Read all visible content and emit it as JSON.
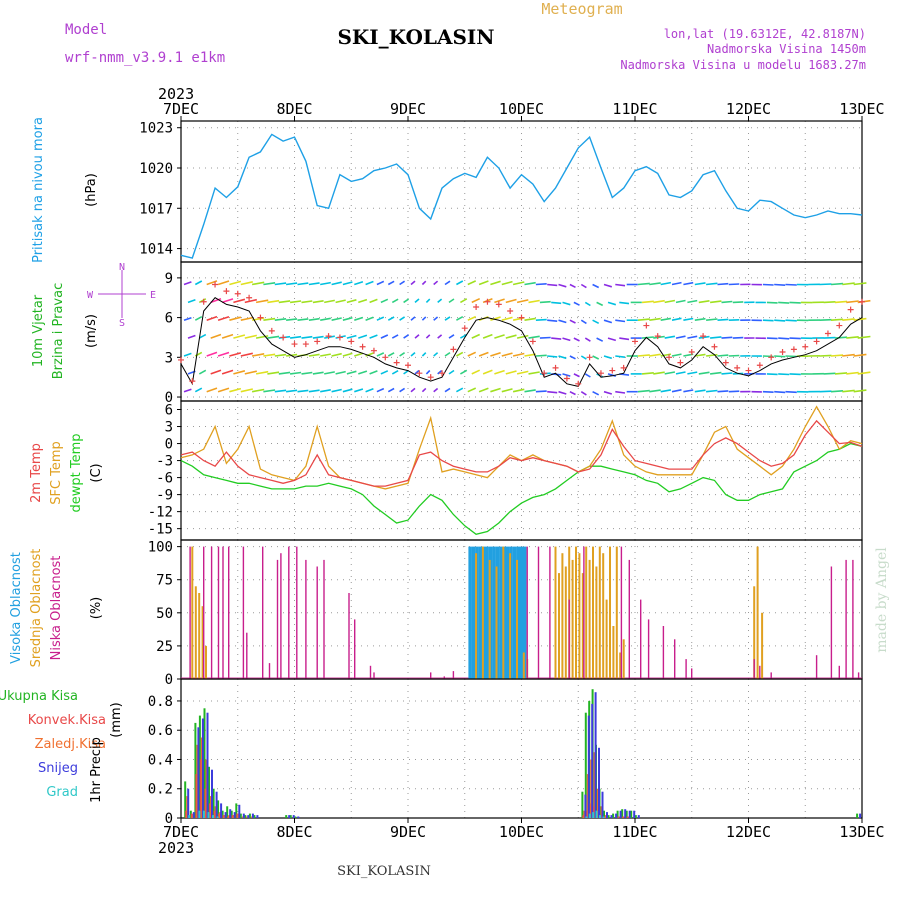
{
  "header": {
    "title": "SKI_KOLASIN",
    "model_label": "Model",
    "model_name": "wrf-nmm_v3.9.1 e1km",
    "meteogram_label": "Meteogram",
    "lonlat": "lon,lat (19.6312E, 42.8187N)",
    "elevation": "Nadmorska Visina 1450m",
    "elevation_model": "Nadmorska Visina u modelu 1683.27m",
    "year_top": "2023",
    "year_bottom": "2023",
    "footer_station": "SKI_KOLASIN",
    "credit": "made by Angel"
  },
  "colors": {
    "pressure": "#1ea0e6",
    "wind_label": "#22b422",
    "temp_2m": "#e84848",
    "temp_sfc": "#e0a020",
    "dewpoint": "#22cc22",
    "cloud_high": "#22a0e0",
    "cloud_mid": "#e0a020",
    "cloud_low": "#c81e8c",
    "precip_total": "#22b422",
    "precip_conv": "#e84848",
    "precip_frozen": "#f07030",
    "precip_snow": "#3c3cdc",
    "precip_hail": "#30c8c8",
    "wind_speed_line": "#000000",
    "gust_marker": "#e84848",
    "compass": "#b040d0"
  },
  "chart_data": [
    {
      "type": "line",
      "id": "pressure",
      "ylabel": "Pritisak na nivou mora",
      "unit": "(hPa)",
      "ylim": [
        1013,
        1023.5
      ],
      "yticks": [
        1014,
        1017,
        1020,
        1023
      ],
      "x": [
        0,
        0.1,
        0.2,
        0.3,
        0.4,
        0.5,
        0.6,
        0.7,
        0.8,
        0.9,
        1,
        1.1,
        1.2,
        1.3,
        1.4,
        1.5,
        1.6,
        1.7,
        1.8,
        1.9,
        2,
        2.1,
        2.2,
        2.3,
        2.4,
        2.5,
        2.6,
        2.7,
        2.8,
        2.9,
        3,
        3.1,
        3.2,
        3.3,
        3.4,
        3.5,
        3.6,
        3.7,
        3.8,
        3.9,
        4,
        4.1,
        4.2,
        4.3,
        4.4,
        4.5,
        4.6,
        4.7,
        4.8,
        4.9,
        5,
        5.1,
        5.2,
        5.3,
        5.4,
        5.5,
        5.6,
        5.7,
        5.8,
        5.9,
        6
      ],
      "values": [
        1013.5,
        1013.3,
        1015.8,
        1018.5,
        1017.8,
        1018.6,
        1020.8,
        1021.2,
        1022.5,
        1022.0,
        1022.3,
        1020.5,
        1017.2,
        1017.0,
        1019.5,
        1019.0,
        1019.2,
        1019.8,
        1020.0,
        1020.3,
        1019.5,
        1017.0,
        1016.2,
        1018.5,
        1019.2,
        1019.6,
        1019.3,
        1020.8,
        1020.0,
        1018.5,
        1019.5,
        1018.8,
        1017.5,
        1018.5,
        1020.0,
        1021.5,
        1022.3,
        1020.0,
        1017.8,
        1018.5,
        1019.8,
        1020.1,
        1019.6,
        1018.0,
        1017.8,
        1018.3,
        1019.5,
        1019.8,
        1018.3,
        1017.0,
        1016.8,
        1017.6,
        1017.5,
        1017.0,
        1016.5,
        1016.3,
        1016.5,
        1016.8,
        1016.6,
        1016.6,
        1016.5
      ]
    },
    {
      "type": "line",
      "id": "wind",
      "ylabel": "10m Vjetar",
      "ylabel2": "Brzina i Pravac",
      "unit": "(m/s)",
      "compass_labels": [
        "N",
        "E",
        "W",
        "S"
      ],
      "ylim": [
        -0.3,
        10.2
      ],
      "yticks": [
        0,
        3,
        6,
        9
      ],
      "x": [
        0,
        0.1,
        0.2,
        0.3,
        0.4,
        0.5,
        0.6,
        0.7,
        0.8,
        0.9,
        1,
        1.1,
        1.2,
        1.3,
        1.4,
        1.5,
        1.6,
        1.7,
        1.8,
        1.9,
        2,
        2.1,
        2.2,
        2.3,
        2.4,
        2.5,
        2.6,
        2.7,
        2.8,
        2.9,
        3,
        3.1,
        3.2,
        3.3,
        3.4,
        3.5,
        3.6,
        3.7,
        3.8,
        3.9,
        4,
        4.1,
        4.2,
        4.3,
        4.4,
        4.5,
        4.6,
        4.7,
        4.8,
        4.9,
        5,
        5.1,
        5.2,
        5.3,
        5.4,
        5.5,
        5.6,
        5.7,
        5.8,
        5.9,
        6
      ],
      "values": [
        2.5,
        1.0,
        6.5,
        7.5,
        7.0,
        6.8,
        6.5,
        5.0,
        4.0,
        3.5,
        3.0,
        3.2,
        3.5,
        3.8,
        3.8,
        3.6,
        3.3,
        3.0,
        2.5,
        2.2,
        2.0,
        1.5,
        1.2,
        1.5,
        3.0,
        4.5,
        5.8,
        6.0,
        5.8,
        5.5,
        5.0,
        3.5,
        1.5,
        1.8,
        1.0,
        0.8,
        2.5,
        1.5,
        1.6,
        1.8,
        3.5,
        4.5,
        3.8,
        2.5,
        2.2,
        2.8,
        3.8,
        3.2,
        2.2,
        1.8,
        1.6,
        2.0,
        2.5,
        2.8,
        3.0,
        3.2,
        3.5,
        4.0,
        4.5,
        5.5,
        6.0
      ],
      "gusts": [
        2.8,
        1.2,
        7.2,
        8.5,
        8.0,
        7.8,
        7.5,
        6.0,
        5.0,
        4.5,
        4.0,
        4.0,
        4.2,
        4.6,
        4.5,
        4.2,
        3.8,
        3.5,
        3.0,
        2.6,
        2.4,
        1.8,
        1.5,
        1.8,
        3.6,
        5.2,
        6.8,
        7.2,
        7.0,
        6.5,
        6.0,
        4.2,
        1.8,
        2.2,
        1.4,
        1.0,
        3.0,
        1.8,
        2.0,
        2.2,
        4.2,
        5.4,
        4.6,
        3.0,
        2.6,
        3.4,
        4.6,
        3.8,
        2.6,
        2.2,
        2.0,
        2.4,
        3.0,
        3.4,
        3.6,
        3.8,
        4.2,
        4.8,
        5.4,
        6.6,
        7.2
      ],
      "directions_deg": [
        250,
        200,
        225,
        225,
        230,
        235,
        240,
        245,
        250,
        250,
        250,
        250,
        245,
        240,
        235,
        230,
        225,
        220,
        215,
        210,
        205,
        200,
        200,
        205,
        210,
        215,
        220,
        225,
        230,
        235,
        240,
        250,
        270,
        300,
        320,
        330,
        330,
        320,
        300,
        280,
        260,
        250,
        245,
        240,
        240,
        245,
        250,
        255,
        260,
        265,
        270,
        275,
        280,
        280,
        275,
        270,
        265,
        260,
        255,
        250,
        250
      ]
    },
    {
      "type": "line",
      "id": "temperature",
      "ylabel_2m": "2m Temp",
      "ylabel_sfc": "SFC Temp",
      "ylabel_dew": "dewpt Temp",
      "unit": "(C)",
      "ylim": [
        -17,
        7.5
      ],
      "yticks": [
        -15,
        -12,
        -9,
        -6,
        -3,
        0,
        3,
        6
      ],
      "x": [
        0,
        0.1,
        0.2,
        0.3,
        0.4,
        0.5,
        0.6,
        0.7,
        0.8,
        0.9,
        1,
        1.1,
        1.2,
        1.3,
        1.4,
        1.5,
        1.6,
        1.7,
        1.8,
        1.9,
        2,
        2.1,
        2.2,
        2.3,
        2.4,
        2.5,
        2.6,
        2.7,
        2.8,
        2.9,
        3,
        3.1,
        3.2,
        3.3,
        3.4,
        3.5,
        3.6,
        3.7,
        3.8,
        3.9,
        4,
        4.1,
        4.2,
        4.3,
        4.4,
        4.5,
        4.6,
        4.7,
        4.8,
        4.9,
        5,
        5.1,
        5.2,
        5.3,
        5.4,
        5.5,
        5.6,
        5.7,
        5.8,
        5.9,
        6
      ],
      "temp2m": [
        -2,
        -1.5,
        -3,
        -4,
        -1.5,
        -4,
        -5.5,
        -6,
        -6.5,
        -7,
        -6.5,
        -5.5,
        -2,
        -5.5,
        -6,
        -6.5,
        -7,
        -7.5,
        -7.5,
        -7,
        -6.5,
        -2,
        -1.5,
        -3,
        -4,
        -4.5,
        -5,
        -5,
        -4,
        -2.5,
        -3,
        -2.5,
        -3,
        -3.5,
        -4,
        -5,
        -4.5,
        -2,
        2.5,
        -0.5,
        -3,
        -3.5,
        -4,
        -4.5,
        -4.5,
        -4.5,
        -2,
        0,
        1,
        0,
        -1.5,
        -3,
        -4,
        -3.5,
        -2,
        1.5,
        4,
        2,
        0,
        0.2,
        -0.5
      ],
      "tempsfc": [
        -2.5,
        -2,
        -1,
        3,
        -3.5,
        -1,
        3,
        -4.5,
        -5.5,
        -6,
        -6.5,
        -4,
        3,
        -4,
        -6,
        -6.5,
        -7,
        -7.5,
        -8,
        -7.5,
        -7,
        -1,
        4.5,
        -5,
        -4.5,
        -5,
        -5.5,
        -6,
        -4,
        -2,
        -3,
        -2,
        -3,
        -3.5,
        -4,
        -5,
        -4,
        -1,
        4,
        -2,
        -4,
        -5,
        -5.5,
        -5.5,
        -5.5,
        -5.5,
        -2,
        2,
        3,
        -1,
        -2.5,
        -4,
        -5.5,
        -4,
        -1,
        3,
        6.5,
        3,
        -1,
        0.5,
        0
      ],
      "dewpoint": [
        -3,
        -4,
        -5.5,
        -6,
        -6.5,
        -7,
        -7,
        -7.5,
        -8,
        -8,
        -8,
        -7.5,
        -7.5,
        -7,
        -7.5,
        -8,
        -9,
        -11,
        -12.5,
        -14,
        -13.5,
        -11,
        -9,
        -10,
        -12.5,
        -14.5,
        -16,
        -15.5,
        -14,
        -12,
        -10.5,
        -9.5,
        -9,
        -8,
        -6.5,
        -5,
        -4,
        -4,
        -4.5,
        -5,
        -5.5,
        -6.5,
        -7,
        -8.5,
        -8,
        -7,
        -6,
        -6.5,
        -9,
        -10,
        -10,
        -9,
        -8.5,
        -8,
        -5,
        -4,
        -3,
        -1.5,
        -1,
        0,
        -0.5
      ]
    },
    {
      "type": "bar",
      "id": "clouds",
      "ylabel_high": "Visoka Oblacnost",
      "ylabel_mid": "Srednja Oblacnost",
      "ylabel_low": "Niska Oblacnost",
      "unit": "(%)",
      "ylim": [
        0,
        105
      ],
      "yticks": [
        0,
        25,
        50,
        75,
        100
      ],
      "high": {
        "x": [
          2.55,
          2.58,
          2.61,
          2.64,
          2.67,
          2.7,
          2.73,
          2.76,
          2.79,
          2.82,
          2.85,
          2.88,
          2.91,
          2.94,
          2.97,
          3.0,
          3.03
        ],
        "values": [
          100,
          100,
          100,
          100,
          100,
          100,
          100,
          100,
          100,
          100,
          100,
          100,
          100,
          100,
          100,
          100,
          100
        ]
      },
      "mid": {
        "x": [
          0.1,
          0.13,
          0.16,
          0.19,
          0.22,
          2.6,
          2.66,
          2.72,
          2.78,
          2.84,
          2.9,
          2.96,
          3.02,
          3.05,
          3.3,
          3.33,
          3.36,
          3.39,
          3.42,
          3.45,
          3.48,
          3.51,
          3.54,
          3.57,
          3.6,
          3.63,
          3.66,
          3.69,
          3.72,
          3.75,
          3.78,
          3.81,
          3.84,
          3.87,
          3.9,
          5.05,
          5.08,
          5.12
        ],
        "values": [
          100,
          70,
          65,
          55,
          25,
          95,
          100,
          90,
          85,
          100,
          95,
          90,
          20,
          15,
          100,
          80,
          95,
          85,
          100,
          90,
          100,
          95,
          80,
          100,
          90,
          100,
          85,
          100,
          95,
          60,
          100,
          40,
          100,
          20,
          30,
          70,
          100,
          50
        ]
      },
      "low": {
        "x": [
          0.08,
          0.2,
          0.27,
          0.33,
          0.37,
          0.42,
          0.55,
          0.58,
          0.72,
          0.78,
          0.85,
          0.88,
          0.95,
          1.02,
          1.1,
          1.2,
          1.26,
          1.48,
          1.53,
          1.67,
          1.7,
          2.2,
          2.32,
          2.4,
          3.05,
          3.15,
          3.25,
          3.42,
          3.55,
          3.88,
          3.95,
          4.05,
          4.12,
          4.25,
          4.35,
          4.45,
          4.5,
          5.05,
          5.1,
          5.2,
          5.6,
          5.73,
          5.8,
          5.86,
          5.92,
          5.97
        ],
        "values": [
          100,
          100,
          100,
          100,
          100,
          100,
          100,
          35,
          100,
          12,
          90,
          95,
          100,
          100,
          90,
          85,
          90,
          65,
          45,
          10,
          5,
          5,
          2,
          6,
          100,
          100,
          100,
          60,
          100,
          100,
          90,
          60,
          45,
          40,
          30,
          15,
          8,
          15,
          10,
          5,
          18,
          85,
          10,
          90,
          90,
          5
        ]
      }
    },
    {
      "type": "bar",
      "id": "precip",
      "legend": [
        "Ukupna Kisa",
        "Konvek.Kisa",
        "Zaledj.Kisa",
        "Snijeg",
        "Grad"
      ],
      "ylabel": "1hr Precip",
      "unit": "(mm)",
      "ylim": [
        0,
        0.95
      ],
      "yticks": [
        0,
        0.2,
        0.4,
        0.6,
        0.8
      ],
      "x": [
        0.05,
        0.1,
        0.14,
        0.18,
        0.22,
        0.26,
        0.3,
        0.34,
        0.38,
        0.42,
        0.46,
        0.5,
        0.54,
        0.58,
        0.62,
        0.66,
        0.94,
        0.98,
        1.02,
        3.55,
        3.58,
        3.61,
        3.64,
        3.67,
        3.7,
        3.74,
        3.78,
        3.82,
        3.86,
        3.9,
        3.94,
        3.98,
        4.02,
        5.97
      ],
      "total": [
        0.25,
        0.05,
        0.65,
        0.7,
        0.75,
        0.35,
        0.2,
        0.12,
        0.05,
        0.08,
        0.05,
        0.1,
        0.03,
        0.02,
        0.03,
        0.02,
        0.02,
        0.02,
        0.01,
        0.18,
        0.72,
        0.8,
        0.88,
        0.5,
        0.2,
        0.05,
        0.02,
        0.03,
        0.05,
        0.06,
        0.05,
        0.05,
        0.02,
        0.03
      ],
      "conv": [
        0.05,
        0.03,
        0.3,
        0.4,
        0.2,
        0.1,
        0.05,
        0.03,
        0.02,
        0.01,
        0.02,
        0.03,
        0.0,
        0.0,
        0.0,
        0.0,
        0.0,
        0.0,
        0.0,
        0.02,
        0.05,
        0.1,
        0.08,
        0.04,
        0.02,
        0.01,
        0.0,
        0.0,
        0.01,
        0.01,
        0.01,
        0.0,
        0.0,
        0.0
      ],
      "frozen": [
        0.15,
        0.02,
        0.5,
        0.55,
        0.4,
        0.15,
        0.08,
        0.04,
        0.02,
        0.02,
        0.02,
        0.03,
        0.01,
        0.01,
        0.01,
        0.0,
        0.0,
        0.0,
        0.0,
        0.05,
        0.3,
        0.4,
        0.45,
        0.2,
        0.08,
        0.02,
        0.0,
        0.0,
        0.0,
        0.0,
        0.0,
        0.0,
        0.0,
        0.0
      ],
      "snow": [
        0.2,
        0.04,
        0.62,
        0.68,
        0.72,
        0.33,
        0.18,
        0.1,
        0.04,
        0.06,
        0.04,
        0.09,
        0.03,
        0.02,
        0.03,
        0.02,
        0.02,
        0.02,
        0.01,
        0.16,
        0.7,
        0.78,
        0.86,
        0.48,
        0.18,
        0.04,
        0.02,
        0.03,
        0.05,
        0.06,
        0.05,
        0.05,
        0.02,
        0.03
      ],
      "hail": [
        0.02,
        0.0,
        0.05,
        0.05,
        0.04,
        0.02,
        0.01,
        0.0,
        0.0,
        0.0,
        0.0,
        0.0,
        0.0,
        0.0,
        0.0,
        0.0,
        0.0,
        0.0,
        0.0,
        0.01,
        0.03,
        0.04,
        0.05,
        0.02,
        0.01,
        0.0,
        0.0,
        0.0,
        0.0,
        0.0,
        0.0,
        0.0,
        0.0,
        0.0
      ]
    }
  ],
  "time_axis": {
    "labels": [
      "7DEC",
      "8DEC",
      "9DEC",
      "10DEC",
      "11DEC",
      "12DEC",
      "13DEC"
    ],
    "range": [
      0,
      6
    ]
  }
}
